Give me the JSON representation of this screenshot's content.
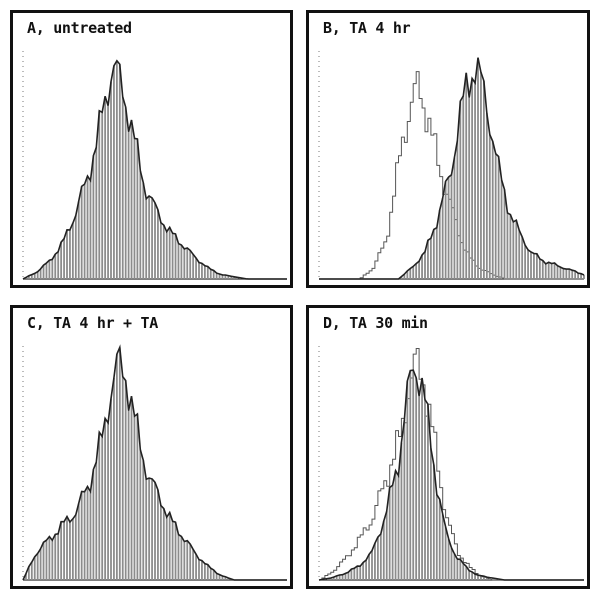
{
  "colors": {
    "fill": "#8c8c8c",
    "edge": "#222222",
    "open": "#555555",
    "frame": "#111111"
  },
  "chart_data": [
    {
      "type": "area",
      "title": "A, untreated",
      "xlim": [
        0,
        100
      ],
      "ylim": [
        0,
        100
      ],
      "grid": false,
      "series": [
        {
          "style": "filled",
          "x": [
            0,
            5,
            10,
            15,
            20,
            25,
            28,
            31,
            34,
            37,
            40,
            43,
            46,
            50,
            55,
            60,
            65,
            70,
            75,
            80,
            85,
            90,
            95,
            100
          ],
          "values": [
            0,
            3,
            8,
            16,
            30,
            48,
            62,
            80,
            97,
            88,
            75,
            58,
            42,
            32,
            22,
            16,
            10,
            5,
            2,
            1,
            0,
            0,
            0,
            0
          ]
        }
      ]
    },
    {
      "type": "area",
      "title": "B, TA 4 hr",
      "xlim": [
        0,
        100
      ],
      "ylim": [
        0,
        100
      ],
      "grid": false,
      "series": [
        {
          "style": "open",
          "x": [
            0,
            15,
            20,
            25,
            28,
            31,
            34,
            37,
            40,
            43,
            46,
            50,
            53,
            56,
            60,
            65,
            70,
            100
          ],
          "values": [
            0,
            0,
            5,
            18,
            40,
            62,
            78,
            87,
            75,
            60,
            45,
            30,
            18,
            10,
            5,
            2,
            0,
            0
          ]
        },
        {
          "style": "filled",
          "x": [
            0,
            30,
            35,
            40,
            45,
            50,
            53,
            56,
            59,
            62,
            65,
            68,
            72,
            76,
            80,
            85,
            90,
            95,
            100
          ],
          "values": [
            0,
            0,
            5,
            12,
            28,
            50,
            72,
            88,
            97,
            85,
            68,
            48,
            30,
            20,
            12,
            8,
            6,
            4,
            2
          ]
        }
      ]
    },
    {
      "type": "area",
      "title": "C, TA 4 hr + TA",
      "xlim": [
        0,
        100
      ],
      "ylim": [
        0,
        100
      ],
      "grid": false,
      "series": [
        {
          "style": "filled",
          "x": [
            0,
            5,
            10,
            15,
            20,
            25,
            30,
            33,
            36,
            39,
            42,
            45,
            48,
            52,
            56,
            60,
            65,
            70,
            75,
            80,
            85,
            90,
            100
          ],
          "values": [
            0,
            12,
            18,
            24,
            30,
            42,
            62,
            82,
            95,
            90,
            72,
            56,
            44,
            36,
            26,
            20,
            12,
            6,
            2,
            0,
            0,
            0,
            0
          ]
        }
      ]
    },
    {
      "type": "area",
      "title": "D, TA 30 min",
      "xlim": [
        0,
        100
      ],
      "ylim": [
        0,
        100
      ],
      "grid": false,
      "series": [
        {
          "style": "open",
          "x": [
            0,
            5,
            10,
            15,
            20,
            25,
            30,
            33,
            36,
            39,
            42,
            45,
            48,
            52,
            56,
            60,
            65,
            100
          ],
          "values": [
            0,
            4,
            10,
            18,
            28,
            45,
            62,
            82,
            95,
            88,
            68,
            45,
            26,
            12,
            6,
            2,
            0,
            0
          ]
        },
        {
          "style": "filled",
          "x": [
            0,
            5,
            10,
            15,
            20,
            25,
            30,
            33,
            36,
            39,
            42,
            45,
            48,
            52,
            56,
            60,
            65,
            70,
            100
          ],
          "values": [
            0,
            1,
            3,
            6,
            12,
            28,
            52,
            78,
            96,
            85,
            62,
            38,
            20,
            10,
            5,
            2,
            1,
            0,
            0
          ]
        }
      ]
    }
  ]
}
